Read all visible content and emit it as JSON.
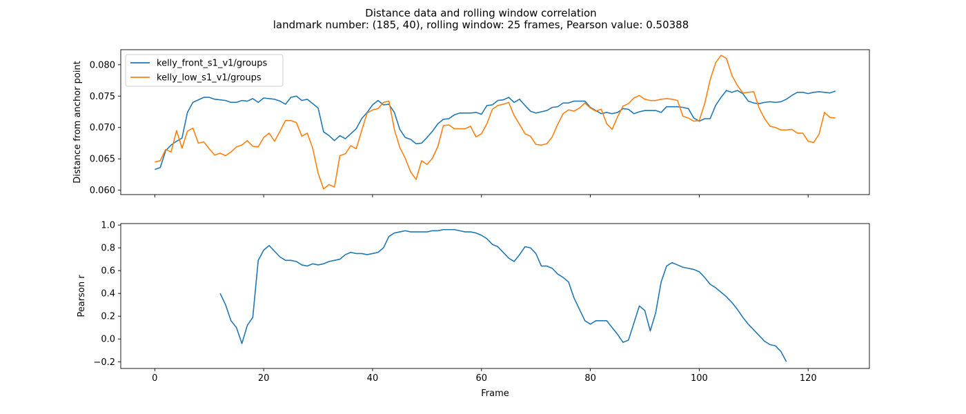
{
  "figure": {
    "title_line1": "Distance data and rolling window correlation",
    "title_line2": "landmark number: (185, 40), rolling window: 25 frames, Pearson value: 0.50388"
  },
  "colors": {
    "series1": "#1f77b4",
    "series2": "#ff7f0e"
  },
  "chart_data": [
    {
      "type": "line",
      "xlabel": "",
      "ylabel": "Distance from anchor point",
      "xlim": [
        -6.25,
        131.25
      ],
      "ylim": [
        0.0593,
        0.0824
      ],
      "xticks": [
        0,
        20,
        40,
        60,
        80,
        100,
        120
      ],
      "yticks": [
        0.06,
        0.065,
        0.07,
        0.075,
        0.08
      ],
      "ytick_labels": [
        "0.060",
        "0.065",
        "0.070",
        "0.075",
        "0.080"
      ],
      "legend": "top-left",
      "series": [
        {
          "name": "kelly_front_s1_v1/groups",
          "x_start": 0,
          "values": [
            0.0633,
            0.0636,
            0.0663,
            0.0672,
            0.0678,
            0.0683,
            0.0724,
            0.074,
            0.0744,
            0.0748,
            0.0748,
            0.0745,
            0.0744,
            0.0743,
            0.074,
            0.074,
            0.0743,
            0.0742,
            0.0746,
            0.074,
            0.0747,
            0.0746,
            0.0745,
            0.0742,
            0.0737,
            0.0748,
            0.075,
            0.0743,
            0.0745,
            0.0738,
            0.0731,
            0.0693,
            0.0687,
            0.0679,
            0.0687,
            0.0682,
            0.069,
            0.0698,
            0.0714,
            0.0724,
            0.0736,
            0.0743,
            0.0736,
            0.0737,
            0.0724,
            0.0697,
            0.0684,
            0.0681,
            0.0674,
            0.0675,
            0.0684,
            0.0694,
            0.0706,
            0.0713,
            0.0714,
            0.072,
            0.0723,
            0.0723,
            0.0723,
            0.0724,
            0.0721,
            0.0735,
            0.0736,
            0.0743,
            0.0744,
            0.0748,
            0.074,
            0.0745,
            0.0735,
            0.0726,
            0.0723,
            0.0725,
            0.0727,
            0.0732,
            0.0733,
            0.0739,
            0.0739,
            0.0742,
            0.0742,
            0.0742,
            0.0732,
            0.0727,
            0.0722,
            0.0724,
            0.0722,
            0.0724,
            0.073,
            0.0729,
            0.0722,
            0.0725,
            0.0727,
            0.0727,
            0.0727,
            0.0724,
            0.0733,
            0.0733,
            0.0733,
            0.0732,
            0.073,
            0.0715,
            0.071,
            0.0714,
            0.0714,
            0.0735,
            0.0748,
            0.0759,
            0.0756,
            0.0759,
            0.0754,
            0.0742,
            0.0739,
            0.0738,
            0.074,
            0.0741,
            0.074,
            0.0741,
            0.0745,
            0.0751,
            0.0756,
            0.0756,
            0.0754,
            0.0756,
            0.0757,
            0.0756,
            0.0755,
            0.0758
          ]
        },
        {
          "name": "kelly_low_s1_v1/groups",
          "x_start": 0,
          "values": [
            0.0645,
            0.0647,
            0.0665,
            0.0661,
            0.0695,
            0.0667,
            0.0694,
            0.0699,
            0.0675,
            0.0677,
            0.0666,
            0.0656,
            0.0659,
            0.0655,
            0.0661,
            0.0669,
            0.0672,
            0.0679,
            0.067,
            0.0669,
            0.0684,
            0.0691,
            0.0678,
            0.0694,
            0.0711,
            0.0711,
            0.0708,
            0.0686,
            0.0691,
            0.0667,
            0.0627,
            0.0602,
            0.0609,
            0.0605,
            0.0655,
            0.0658,
            0.0671,
            0.0666,
            0.0695,
            0.0723,
            0.0728,
            0.073,
            0.074,
            0.0742,
            0.0697,
            0.0668,
            0.0651,
            0.0629,
            0.0617,
            0.0647,
            0.0641,
            0.0651,
            0.067,
            0.0703,
            0.0704,
            0.0698,
            0.0698,
            0.0698,
            0.0702,
            0.0685,
            0.069,
            0.0706,
            0.0729,
            0.0735,
            0.0737,
            0.074,
            0.0719,
            0.0705,
            0.069,
            0.0686,
            0.0673,
            0.0672,
            0.0674,
            0.0685,
            0.0705,
            0.0722,
            0.0728,
            0.0726,
            0.0731,
            0.0739,
            0.0731,
            0.0726,
            0.0729,
            0.0706,
            0.0697,
            0.0717,
            0.0734,
            0.0738,
            0.0747,
            0.0751,
            0.0745,
            0.0743,
            0.0743,
            0.0745,
            0.0746,
            0.0745,
            0.0743,
            0.0718,
            0.0715,
            0.071,
            0.0711,
            0.0738,
            0.0776,
            0.0803,
            0.0815,
            0.081,
            0.0783,
            0.0767,
            0.0755,
            0.0756,
            0.0757,
            0.0731,
            0.0714,
            0.0702,
            0.07,
            0.0696,
            0.0696,
            0.0697,
            0.0691,
            0.0691,
            0.0678,
            0.0676,
            0.0689,
            0.0724,
            0.0716,
            0.0715
          ]
        }
      ]
    },
    {
      "type": "line",
      "xlabel": "Frame",
      "ylabel": "Pearson r",
      "xlim": [
        -6.25,
        131.25
      ],
      "ylim": [
        -0.259,
        1.013
      ],
      "xticks": [
        0,
        20,
        40,
        60,
        80,
        100,
        120
      ],
      "yticks": [
        -0.2,
        0.0,
        0.2,
        0.4,
        0.6,
        0.8,
        1.0
      ],
      "ytick_labels": [
        "−0.2",
        "0.0",
        "0.2",
        "0.4",
        "0.6",
        "0.8",
        "1.0"
      ],
      "series": [
        {
          "x_start": 12,
          "values": [
            0.4,
            0.3,
            0.16,
            0.1,
            -0.04,
            0.12,
            0.19,
            0.69,
            0.78,
            0.82,
            0.77,
            0.72,
            0.69,
            0.69,
            0.68,
            0.65,
            0.64,
            0.66,
            0.65,
            0.66,
            0.68,
            0.69,
            0.7,
            0.74,
            0.76,
            0.75,
            0.75,
            0.74,
            0.75,
            0.76,
            0.8,
            0.9,
            0.93,
            0.94,
            0.95,
            0.94,
            0.94,
            0.94,
            0.94,
            0.95,
            0.95,
            0.96,
            0.96,
            0.96,
            0.95,
            0.94,
            0.94,
            0.93,
            0.91,
            0.88,
            0.83,
            0.81,
            0.76,
            0.71,
            0.68,
            0.74,
            0.81,
            0.8,
            0.75,
            0.64,
            0.64,
            0.62,
            0.57,
            0.54,
            0.5,
            0.36,
            0.26,
            0.16,
            0.13,
            0.16,
            0.16,
            0.16,
            0.1,
            0.04,
            -0.03,
            -0.01,
            0.14,
            0.29,
            0.25,
            0.07,
            0.23,
            0.5,
            0.64,
            0.67,
            0.65,
            0.63,
            0.62,
            0.61,
            0.59,
            0.54,
            0.48,
            0.45,
            0.41,
            0.37,
            0.32,
            0.26,
            0.19,
            0.13,
            0.08,
            0.03,
            -0.02,
            -0.05,
            -0.06,
            -0.11,
            -0.2
          ]
        }
      ]
    }
  ]
}
